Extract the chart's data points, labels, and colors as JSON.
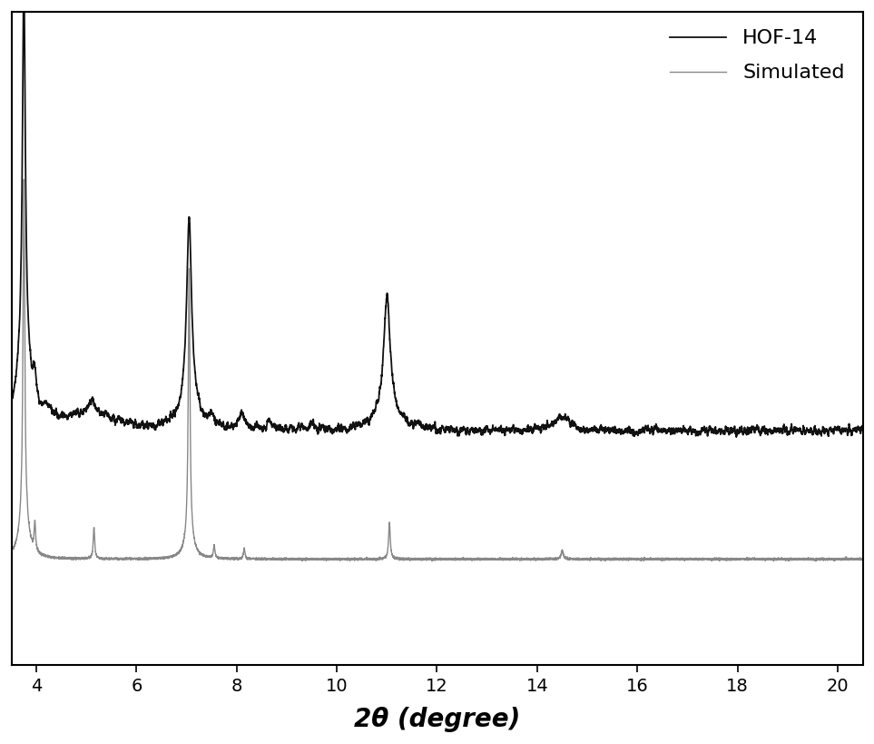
{
  "xlabel": "2θ (degree)",
  "xlim": [
    3.5,
    20.5
  ],
  "xticks": [
    4,
    6,
    8,
    10,
    12,
    14,
    16,
    18,
    20
  ],
  "hof14_color": "#111111",
  "simulated_color": "#888888",
  "hof14_label": "HOF-14",
  "simulated_label": "Simulated",
  "hof14_linewidth": 1.3,
  "simulated_linewidth": 1.0,
  "background_color": "#ffffff",
  "legend_fontsize": 16,
  "xlabel_fontsize": 20,
  "tick_fontsize": 14,
  "ylim": [
    -0.12,
    1.05
  ],
  "hof14_baseline": 0.3,
  "sim_baseline": 0.07
}
